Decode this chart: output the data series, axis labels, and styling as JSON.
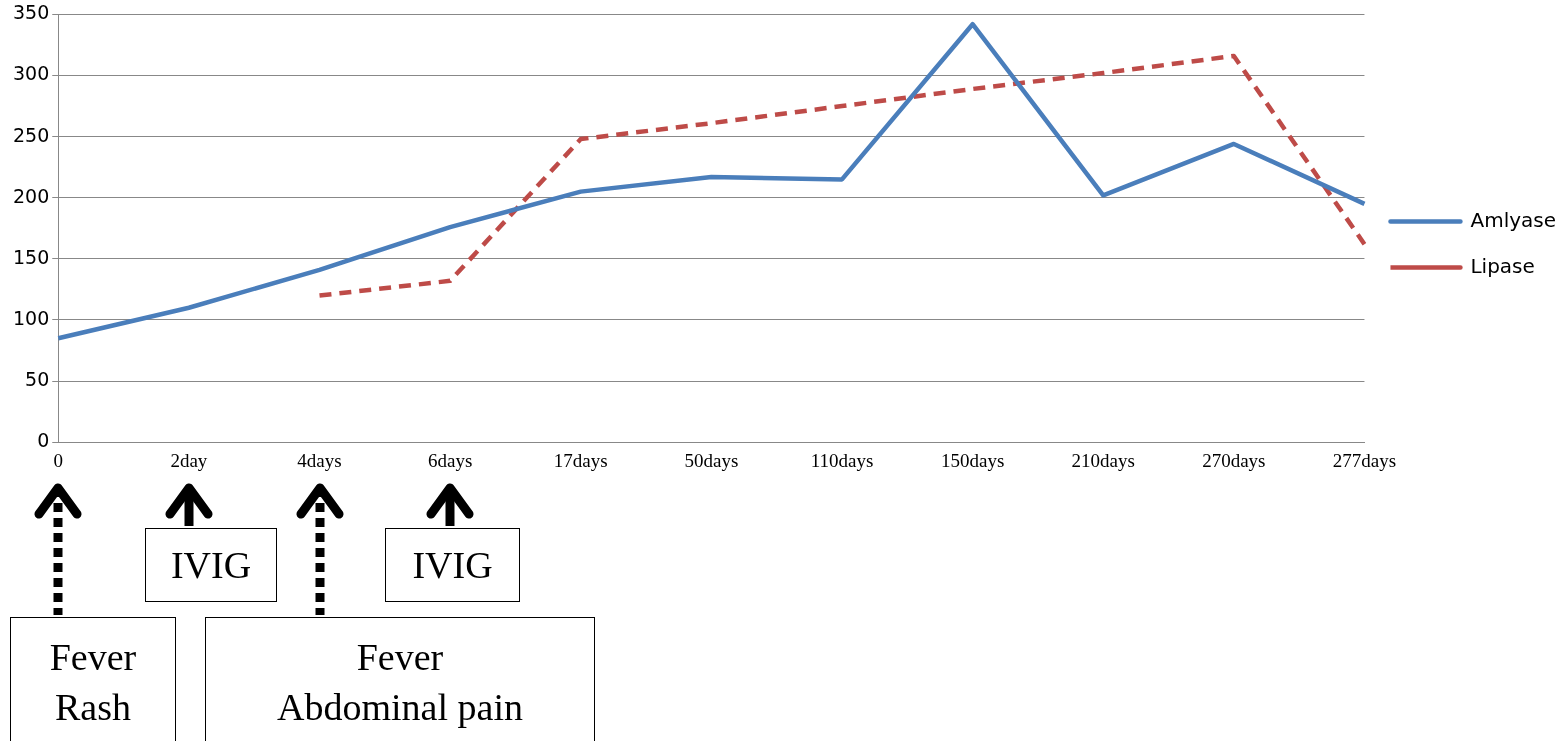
{
  "chart_data": {
    "type": "line",
    "categories": [
      "0",
      "2day",
      "4days",
      "6days",
      "17days",
      "50days",
      "110days",
      "150days",
      "210days",
      "270days",
      "277days"
    ],
    "series": [
      {
        "name": "Amlyase",
        "color": "#4a7ebb",
        "line_style": "solid",
        "values": [
          85,
          110,
          141,
          176,
          205,
          217,
          215,
          342,
          202,
          244,
          195
        ]
      },
      {
        "name": "Lipase",
        "color": "#be4b48",
        "line_style": "dashed",
        "values": [
          null,
          null,
          120,
          132,
          248,
          261,
          275,
          289,
          302,
          316,
          162
        ]
      }
    ],
    "ylim": [
      0,
      350
    ],
    "yticks": [
      0,
      50,
      100,
      150,
      200,
      250,
      300,
      350
    ],
    "grid": "y",
    "legend": "right",
    "marker": "none",
    "annotations": [
      "IVIG",
      "IVIG",
      "Fever\nRash",
      "Fever\nAbdominal pain"
    ]
  }
}
